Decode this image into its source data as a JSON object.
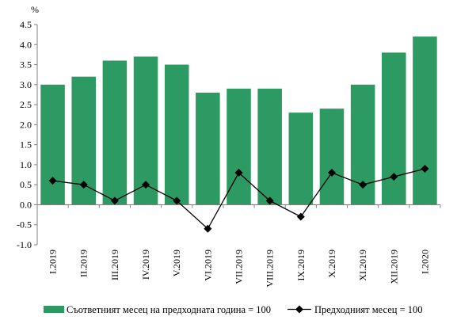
{
  "chart_data": {
    "type": "bar",
    "title": "",
    "xlabel": "",
    "ylabel": "%",
    "ylim": [
      -1.0,
      4.5
    ],
    "yticks": [
      -1.0,
      -0.5,
      0.0,
      0.5,
      1.0,
      1.5,
      2.0,
      2.5,
      3.0,
      3.5,
      4.0,
      4.5
    ],
    "ytick_labels": [
      "-1.0",
      "-0.5",
      "0.0",
      "0.5",
      "1.0",
      "1.5",
      "2.0",
      "2.5",
      "3.0",
      "3.5",
      "4.0",
      "4.5"
    ],
    "grid": false,
    "legend_position": "bottom",
    "categories": [
      "I.2019",
      "II.2019",
      "III.2019",
      "IV.2019",
      "V.2019",
      "VI.2019",
      "VII.2019",
      "VIII.2019",
      "IX.2019",
      "X.2019",
      "XI.2019",
      "XII.2019",
      "I.2020"
    ],
    "series": [
      {
        "name": "Съответният месец на предходната година = 100",
        "type": "bar",
        "color": "#2e9a63",
        "values": [
          3.0,
          3.2,
          3.6,
          3.7,
          3.5,
          2.8,
          2.9,
          2.9,
          2.3,
          2.4,
          3.0,
          3.8,
          4.2
        ]
      },
      {
        "name": "Предходният месец = 100",
        "type": "line",
        "color": "#000000",
        "marker": "diamond",
        "values": [
          0.6,
          0.5,
          0.1,
          0.5,
          0.1,
          -0.6,
          0.8,
          0.1,
          -0.3,
          0.8,
          0.5,
          0.7,
          0.9
        ]
      }
    ]
  }
}
